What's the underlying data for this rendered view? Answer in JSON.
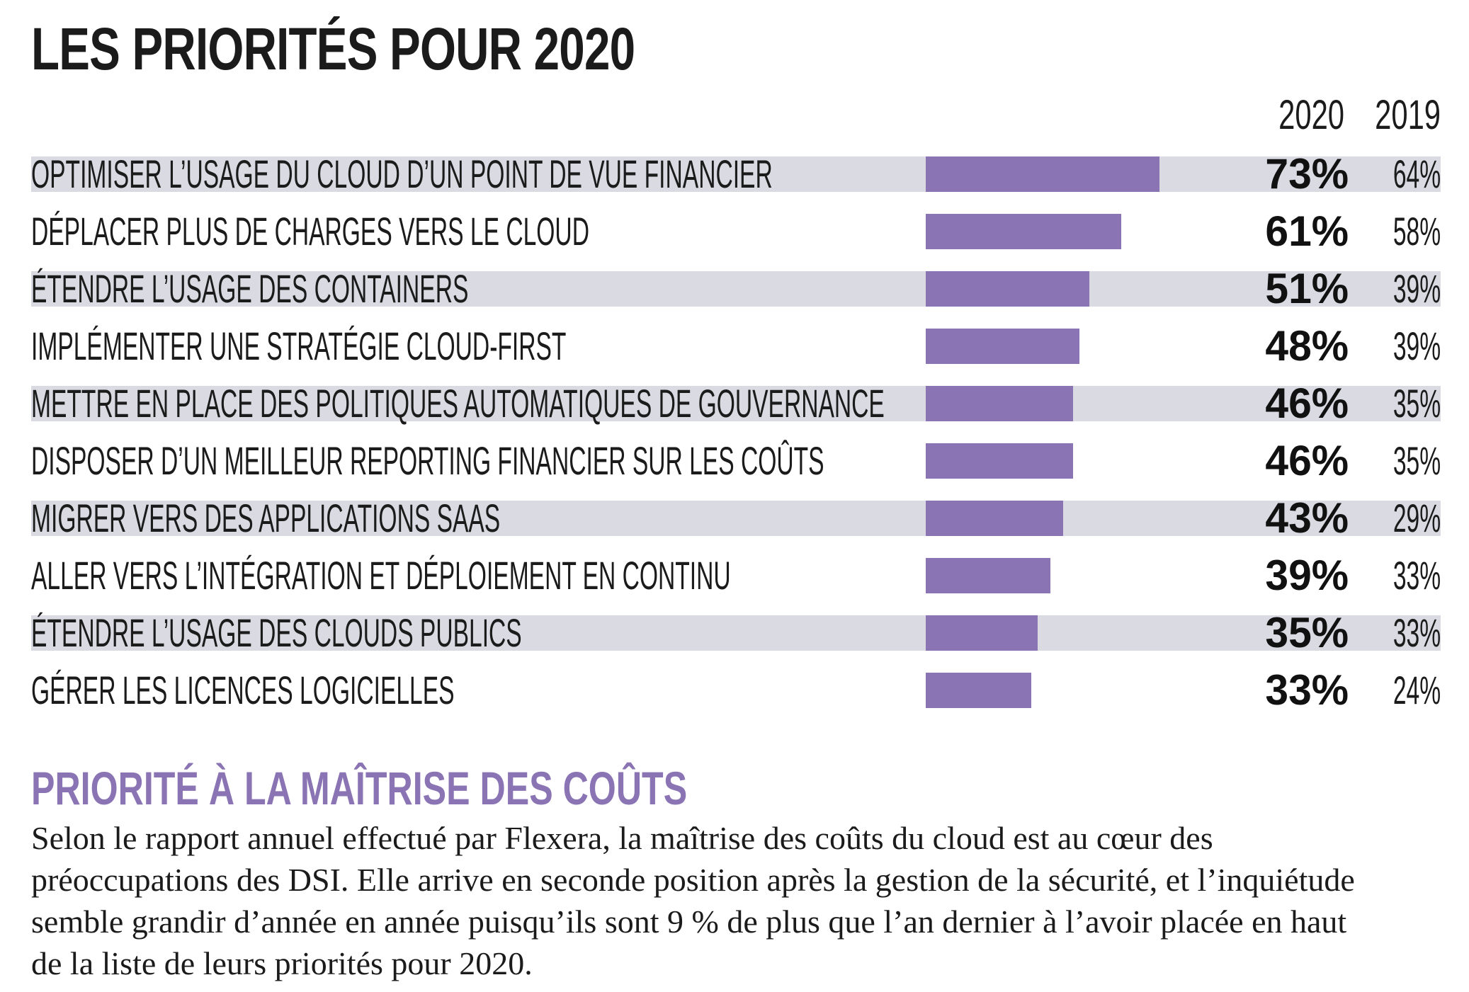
{
  "title": "LES PRIORITÉS POUR 2020",
  "columns": {
    "y2020": "2020",
    "y2019": "2019"
  },
  "chart_data": {
    "type": "bar",
    "orientation": "horizontal",
    "title": "LES PRIORITÉS POUR 2020",
    "categories": [
      "OPTIMISER L’USAGE DU CLOUD D’UN POINT DE VUE FINANCIER",
      "DÉPLACER PLUS DE CHARGES VERS LE CLOUD",
      "ÉTENDRE L’USAGE DES CONTAINERS",
      "IMPLÉMENTER UNE STRATÉGIE CLOUD-FIRST",
      "METTRE EN PLACE DES POLITIQUES AUTOMATIQUES DE GOUVERNANCE",
      "DISPOSER D’UN MEILLEUR REPORTING FINANCIER SUR LES COÛTS",
      "MIGRER VERS DES APPLICATIONS SAAS",
      "ALLER VERS L’INTÉGRATION ET DÉPLOIEMENT EN CONTINU",
      "ÉTENDRE L’USAGE DES CLOUDS PUBLICS",
      "GÉRER LES LICENCES LOGICIELLES"
    ],
    "series": [
      {
        "name": "2020",
        "values": [
          73,
          61,
          51,
          48,
          46,
          46,
          43,
          39,
          35,
          33
        ]
      },
      {
        "name": "2019",
        "values": [
          64,
          58,
          39,
          39,
          35,
          35,
          29,
          33,
          33,
          24
        ]
      }
    ],
    "labels_2020": [
      "73%",
      "61%",
      "51%",
      "48%",
      "46%",
      "46%",
      "43%",
      "39%",
      "35%",
      "33%"
    ],
    "labels_2019": [
      "64%",
      "58%",
      "39%",
      "39%",
      "35%",
      "35%",
      "29%",
      "33%",
      "33%",
      "24%"
    ],
    "unit": "%",
    "bar_color": "#8a74b3",
    "shade_color": "#d9dae2",
    "shaded_rows": [
      0,
      2,
      4,
      6,
      8
    ],
    "xlim": [
      0,
      100
    ],
    "grid": false,
    "legend": "none"
  },
  "article": {
    "heading": "PRIORITÉ À LA MAÎTRISE DES COÛTS",
    "text": "Selon le rapport annuel effectué par Flexera, la maîtrise des coûts du cloud est au cœur des préoccupations des DSI. Elle arrive en seconde position après la gestion de la sécurité, et l’inquiétude semble grandir d’année en année puisqu’ils sont 9 % de plus que l’an dernier à l’avoir placée en haut de la liste de leurs priorités pour 2020."
  },
  "colors": {
    "accent": "#8a74b3",
    "row_shade": "#d9dae2",
    "text": "#1b1b1b"
  }
}
